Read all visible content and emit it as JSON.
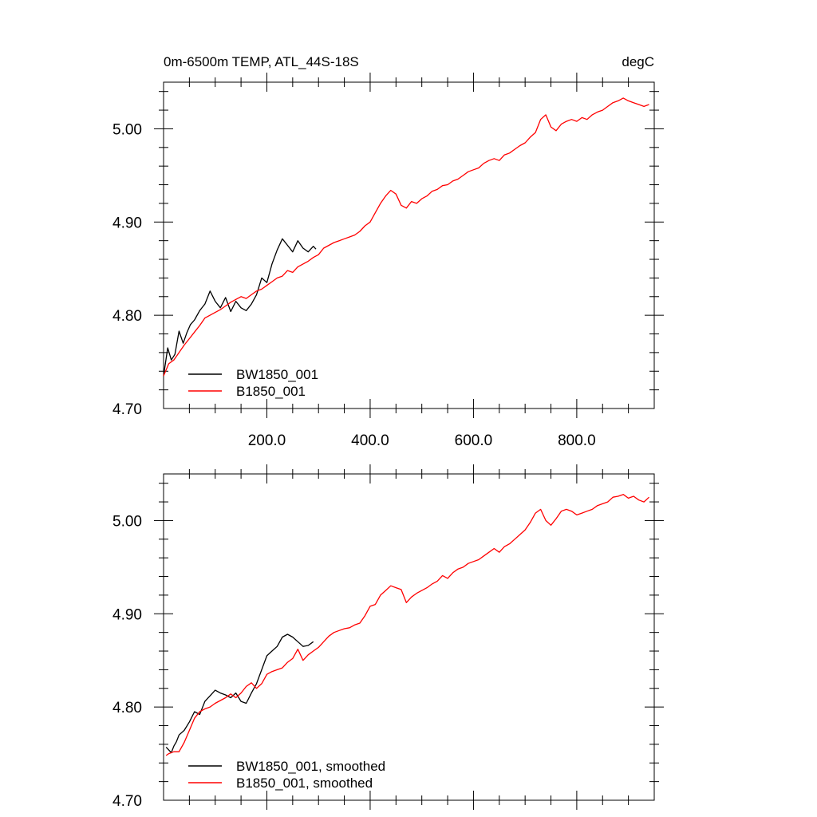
{
  "figure": {
    "title_left": "0m-6500m TEMP, ATL_44S-18S",
    "title_right": "degC"
  },
  "colors": {
    "BW1850_001": "#000000",
    "B1850_001": "#ff0000"
  },
  "chart_data": [
    {
      "type": "line",
      "panel": "raw",
      "title": "0m-6500m TEMP, ATL_44S-18S",
      "units": "degC",
      "xlim": [
        0,
        950
      ],
      "ylim": [
        4.7,
        5.05
      ],
      "xticks": [
        200,
        400,
        600,
        800
      ],
      "xtick_labels": [
        "200.0",
        "400.0",
        "600.0",
        "800.0"
      ],
      "yticks": [
        4.7,
        4.8,
        4.9,
        5.0
      ],
      "ytick_labels": [
        "4.70",
        "4.80",
        "4.90",
        "5.00"
      ],
      "legend_position": "bottom-left",
      "legend": [
        "BW1850_001",
        "B1850_001"
      ],
      "series": [
        {
          "name": "BW1850_001",
          "color": "#000000",
          "x": [
            0,
            8,
            15,
            22,
            30,
            38,
            45,
            52,
            60,
            70,
            80,
            90,
            100,
            110,
            120,
            130,
            140,
            150,
            160,
            170,
            180,
            190,
            200,
            210,
            220,
            230,
            240,
            250,
            260,
            270,
            280,
            290,
            295
          ],
          "y": [
            4.735,
            4.765,
            4.752,
            4.758,
            4.783,
            4.77,
            4.781,
            4.79,
            4.795,
            4.805,
            4.812,
            4.826,
            4.815,
            4.808,
            4.819,
            4.804,
            4.815,
            4.808,
            4.805,
            4.812,
            4.822,
            4.84,
            4.835,
            4.855,
            4.87,
            4.882,
            4.875,
            4.868,
            4.88,
            4.872,
            4.868,
            4.874,
            4.871
          ]
        },
        {
          "name": "B1850_001",
          "color": "#ff0000",
          "x": [
            0,
            10,
            20,
            30,
            40,
            50,
            60,
            70,
            80,
            90,
            100,
            110,
            120,
            130,
            140,
            150,
            160,
            170,
            180,
            190,
            200,
            210,
            220,
            230,
            240,
            250,
            260,
            270,
            280,
            290,
            300,
            310,
            320,
            330,
            340,
            350,
            360,
            370,
            380,
            390,
            400,
            410,
            420,
            430,
            440,
            450,
            460,
            470,
            480,
            490,
            500,
            510,
            520,
            530,
            540,
            550,
            560,
            570,
            580,
            590,
            600,
            610,
            620,
            630,
            640,
            650,
            660,
            670,
            680,
            690,
            700,
            710,
            720,
            730,
            740,
            750,
            760,
            770,
            780,
            790,
            800,
            810,
            820,
            830,
            840,
            850,
            860,
            870,
            880,
            890,
            900,
            910,
            920,
            930,
            940
          ],
          "y": [
            4.735,
            4.748,
            4.752,
            4.76,
            4.768,
            4.775,
            4.782,
            4.789,
            4.797,
            4.8,
            4.803,
            4.806,
            4.81,
            4.814,
            4.817,
            4.82,
            4.818,
            4.822,
            4.826,
            4.828,
            4.832,
            4.836,
            4.84,
            4.842,
            4.848,
            4.846,
            4.852,
            4.855,
            4.858,
            4.862,
            4.865,
            4.872,
            4.875,
            4.878,
            4.88,
            4.882,
            4.884,
            4.886,
            4.89,
            4.896,
            4.9,
            4.91,
            4.92,
            4.928,
            4.934,
            4.93,
            4.918,
            4.915,
            4.922,
            4.92,
            4.925,
            4.928,
            4.933,
            4.935,
            4.939,
            4.94,
            4.944,
            4.946,
            4.95,
            4.954,
            4.956,
            4.958,
            4.963,
            4.966,
            4.968,
            4.966,
            4.972,
            4.974,
            4.978,
            4.982,
            4.985,
            4.991,
            4.996,
            5.01,
            5.015,
            5.002,
            4.998,
            5.005,
            5.008,
            5.01,
            5.008,
            5.012,
            5.01,
            5.015,
            5.018,
            5.02,
            5.024,
            5.028,
            5.03,
            5.033,
            5.03,
            5.028,
            5.026,
            5.024,
            5.026
          ]
        }
      ]
    },
    {
      "type": "line",
      "panel": "smoothed",
      "xlim": [
        0,
        950
      ],
      "ylim": [
        4.7,
        5.05
      ],
      "yticks": [
        4.7,
        4.8,
        4.9,
        5.0
      ],
      "ytick_labels": [
        "4.70",
        "4.80",
        "4.90",
        "5.00"
      ],
      "legend_position": "bottom-left",
      "legend": [
        "BW1850_001, smoothed",
        "B1850_001, smoothed"
      ],
      "series": [
        {
          "name": "BW1850_001, smoothed",
          "color": "#000000",
          "x": [
            5,
            10,
            15,
            20,
            25,
            30,
            40,
            50,
            60,
            70,
            80,
            90,
            100,
            110,
            120,
            130,
            140,
            150,
            160,
            170,
            180,
            190,
            200,
            210,
            220,
            230,
            240,
            250,
            260,
            270,
            280,
            290
          ],
          "y": [
            4.757,
            4.754,
            4.751,
            4.758,
            4.763,
            4.77,
            4.775,
            4.784,
            4.795,
            4.792,
            4.806,
            4.812,
            4.818,
            4.815,
            4.813,
            4.81,
            4.815,
            4.806,
            4.804,
            4.815,
            4.825,
            4.84,
            4.855,
            4.86,
            4.865,
            4.875,
            4.878,
            4.875,
            4.87,
            4.865,
            4.866,
            4.87
          ]
        },
        {
          "name": "B1850_001, smoothed",
          "color": "#ff0000",
          "x": [
            5,
            10,
            20,
            30,
            40,
            50,
            60,
            70,
            80,
            90,
            100,
            110,
            120,
            130,
            140,
            150,
            160,
            170,
            180,
            190,
            200,
            210,
            220,
            230,
            240,
            250,
            260,
            270,
            280,
            290,
            300,
            310,
            320,
            330,
            340,
            350,
            360,
            370,
            380,
            390,
            400,
            410,
            420,
            430,
            440,
            450,
            460,
            470,
            480,
            490,
            500,
            510,
            520,
            530,
            540,
            550,
            560,
            570,
            580,
            590,
            600,
            610,
            620,
            630,
            640,
            650,
            660,
            670,
            680,
            690,
            700,
            710,
            720,
            730,
            740,
            750,
            760,
            770,
            780,
            790,
            800,
            810,
            820,
            830,
            840,
            850,
            860,
            870,
            880,
            890,
            900,
            910,
            920,
            930,
            940
          ],
          "y": [
            4.748,
            4.75,
            4.752,
            4.752,
            4.762,
            4.775,
            4.788,
            4.795,
            4.798,
            4.8,
            4.804,
            4.807,
            4.81,
            4.814,
            4.81,
            4.815,
            4.822,
            4.826,
            4.82,
            4.825,
            4.835,
            4.838,
            4.84,
            4.842,
            4.848,
            4.852,
            4.862,
            4.85,
            4.856,
            4.86,
            4.864,
            4.87,
            4.876,
            4.88,
            4.882,
            4.884,
            4.885,
            4.888,
            4.89,
            4.898,
            4.908,
            4.91,
            4.92,
            4.925,
            4.93,
            4.928,
            4.926,
            4.912,
            4.918,
            4.922,
            4.925,
            4.928,
            4.932,
            4.935,
            4.941,
            4.938,
            4.944,
            4.948,
            4.95,
            4.954,
            4.956,
            4.958,
            4.962,
            4.966,
            4.97,
            4.966,
            4.972,
            4.975,
            4.98,
            4.985,
            4.99,
            4.998,
            5.008,
            5.012,
            5.0,
            4.995,
            5.002,
            5.01,
            5.012,
            5.01,
            5.006,
            5.008,
            5.01,
            5.012,
            5.016,
            5.018,
            5.02,
            5.025,
            5.026,
            5.028,
            5.024,
            5.026,
            5.022,
            5.02,
            5.025
          ]
        }
      ]
    }
  ]
}
